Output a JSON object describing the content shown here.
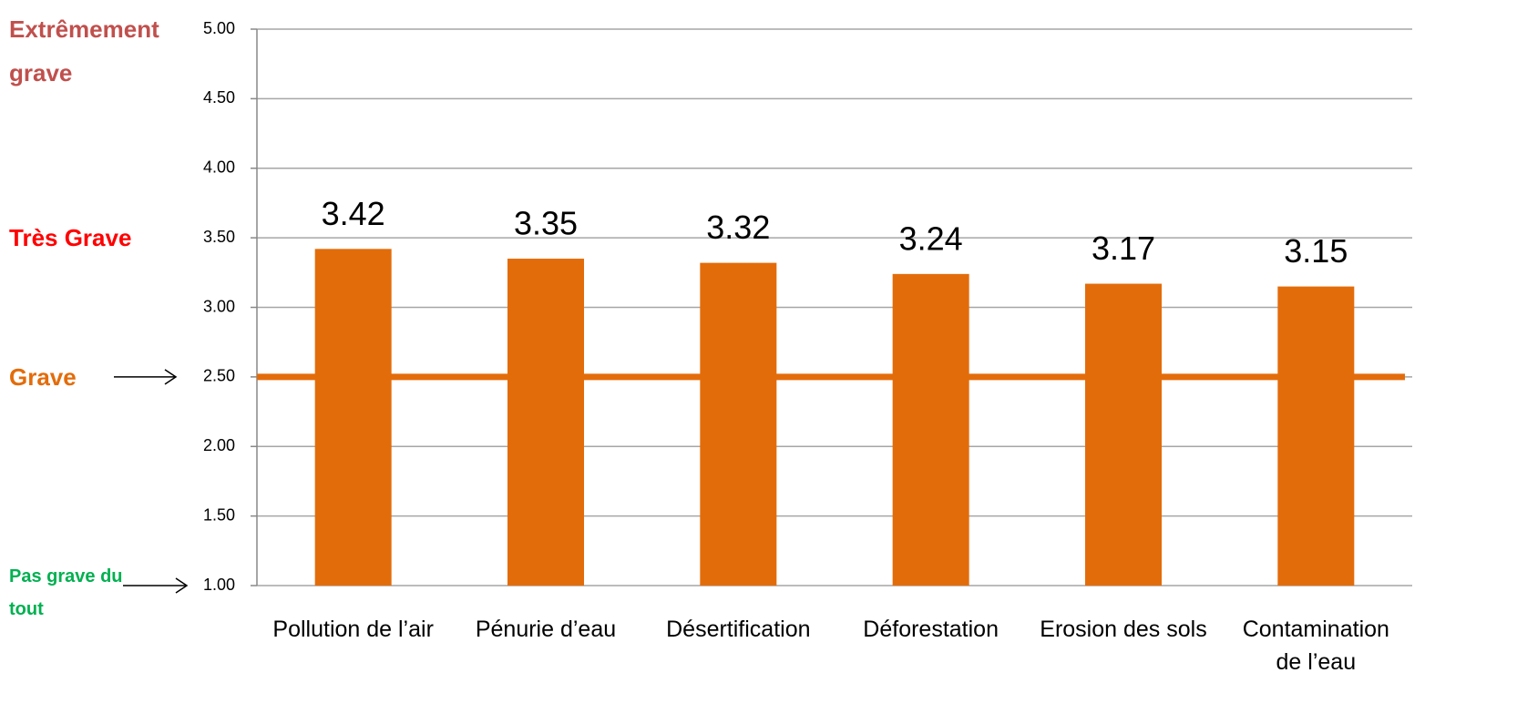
{
  "chart_data": {
    "type": "bar",
    "categories": [
      "Pollution de l’air",
      "Pénurie d’eau",
      "Désertification",
      "Déforestation",
      "Erosion des sols",
      "Contamination de l’eau"
    ],
    "values": [
      3.42,
      3.35,
      3.32,
      3.24,
      3.17,
      3.15
    ],
    "color": "#e36c0a",
    "ylim": [
      1,
      5
    ],
    "yticks": [
      {
        "value": 1,
        "label": "1.00"
      },
      {
        "value": 1.5,
        "label": "1.50"
      },
      {
        "value": 2,
        "label": "2.00"
      },
      {
        "value": 2.5,
        "label": "2.50"
      },
      {
        "value": 3,
        "label": "3.00"
      },
      {
        "value": 3.5,
        "label": "3.50"
      },
      {
        "value": 4,
        "label": "4.00"
      },
      {
        "value": 4.5,
        "label": "4.50"
      },
      {
        "value": 5,
        "label": "5.00"
      }
    ],
    "grid": true,
    "reference_line": {
      "value": 2.5,
      "color": "#e36c0a"
    },
    "annotations": [
      {
        "text": "Extrêmement grave",
        "value": 5,
        "color": "#c0504d",
        "arrow": false
      },
      {
        "text": "Très Grave",
        "value": 3.5,
        "color": "#ff0000",
        "arrow": false
      },
      {
        "text": "Grave",
        "value": 2.5,
        "color": "#e36c0a",
        "arrow": true
      },
      {
        "text": "Pas grave du tout",
        "value": 1,
        "color": "#00b050",
        "arrow": true
      }
    ]
  }
}
